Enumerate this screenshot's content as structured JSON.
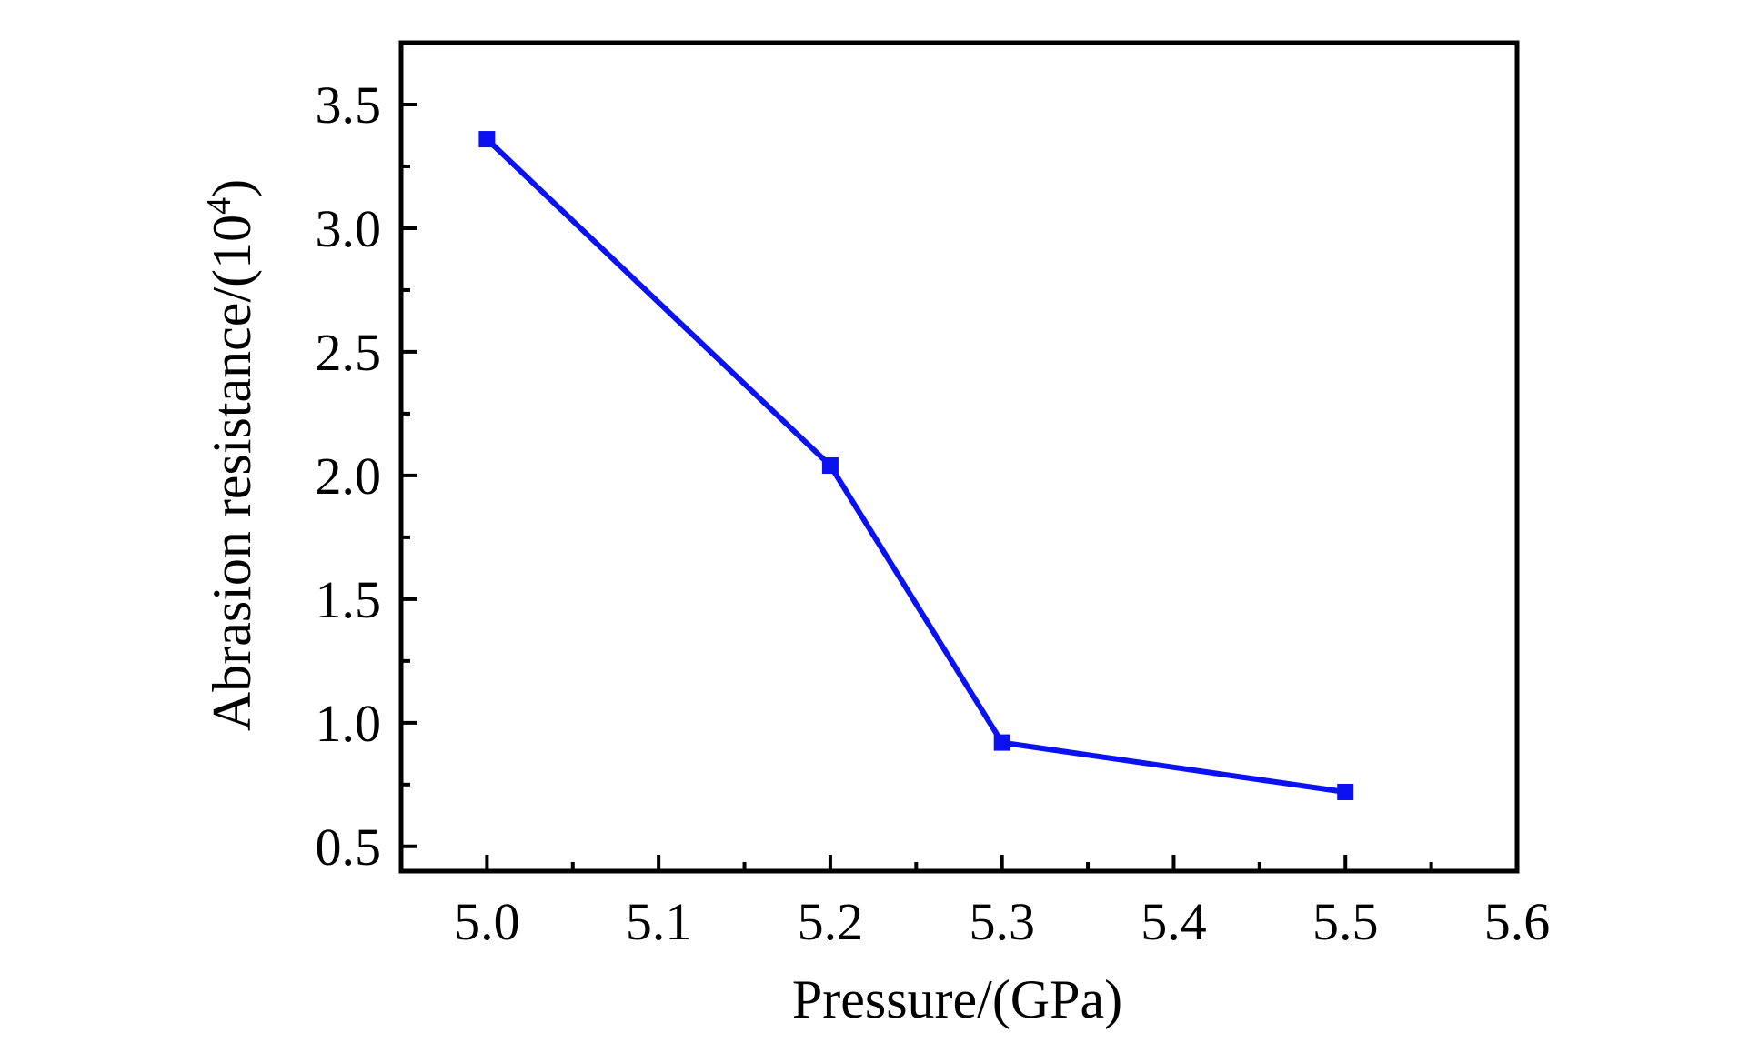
{
  "chart_data": {
    "type": "line",
    "title": "",
    "xlabel": "Pressure/(GPa)",
    "ylabel_prefix": "Abrasion resistance/(10",
    "ylabel_exponent": "4",
    "ylabel_suffix": ")",
    "xlim": [
      4.95,
      5.6
    ],
    "ylim": [
      0.4,
      3.75
    ],
    "x_ticks": [
      5.0,
      5.1,
      5.2,
      5.3,
      5.4,
      5.5,
      5.6
    ],
    "x_tick_labels": [
      "5.0",
      "5.1",
      "5.2",
      "5.3",
      "5.4",
      "5.5",
      "5.6"
    ],
    "x_minor_ticks": [
      5.05,
      5.15,
      5.25,
      5.35,
      5.45,
      5.55
    ],
    "y_ticks": [
      0.5,
      1.0,
      1.5,
      2.0,
      2.5,
      3.0,
      3.5
    ],
    "y_tick_labels": [
      "0.5",
      "1.0",
      "1.5",
      "2.0",
      "2.5",
      "3.0",
      "3.5"
    ],
    "y_minor_ticks": [
      0.75,
      1.25,
      1.75,
      2.25,
      2.75,
      3.25
    ],
    "grid": false,
    "legend": "none",
    "series": [
      {
        "x": [
          5.0,
          5.2,
          5.3,
          5.5
        ],
        "y": [
          3.36,
          2.04,
          0.92,
          0.72
        ],
        "color": "#0a12f2",
        "marker": "square"
      }
    ]
  }
}
